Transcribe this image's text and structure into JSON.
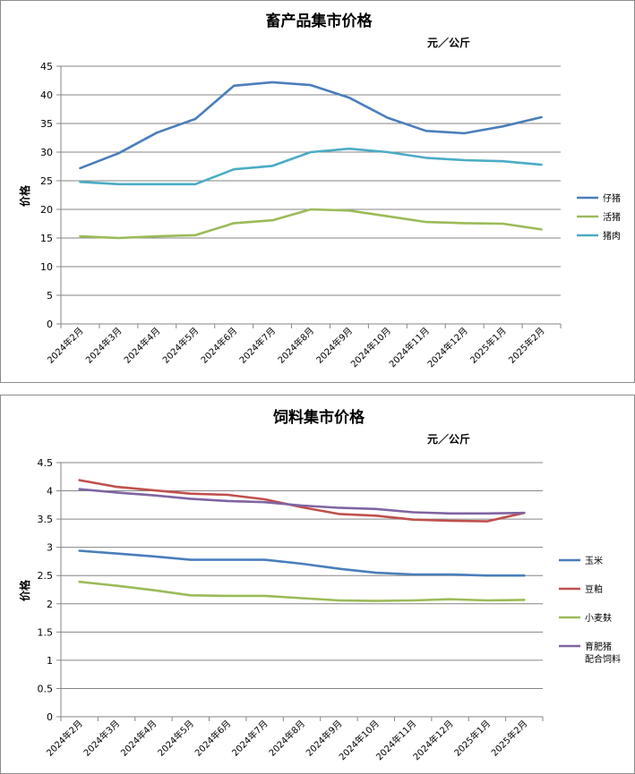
{
  "chart_data": [
    {
      "type": "line",
      "title": "畜产品集市价格",
      "unit": "元／公斤",
      "ylabel": "价格",
      "ylim": [
        0,
        45
      ],
      "yticks": [
        0,
        5,
        10,
        15,
        20,
        25,
        30,
        35,
        40,
        45
      ],
      "grid": true,
      "legend_position": "right",
      "categories": [
        "2024年2月",
        "2024年3月",
        "2024年4月",
        "2024年5月",
        "2024年6月",
        "2024年7月",
        "2024年8月",
        "2024年9月",
        "2024年10月",
        "2024年11月",
        "2024年12月",
        "2025年1月",
        "2025年2月"
      ],
      "series": [
        {
          "name": "仔猪",
          "color": "#4a7ebb",
          "values": [
            27.2,
            29.8,
            33.4,
            35.8,
            41.6,
            42.2,
            41.7,
            39.5,
            36.0,
            33.7,
            33.3,
            34.5,
            36.1
          ]
        },
        {
          "name": "活猪",
          "color": "#9bbb59",
          "values": [
            15.3,
            15.0,
            15.3,
            15.5,
            17.6,
            18.1,
            20.0,
            19.8,
            18.8,
            17.8,
            17.6,
            17.5,
            16.5
          ]
        },
        {
          "name": "猪肉",
          "color": "#4bacc6",
          "values": [
            24.8,
            24.4,
            24.4,
            24.4,
            27.0,
            27.6,
            30.0,
            30.6,
            30.0,
            29.0,
            28.6,
            28.4,
            27.8
          ]
        }
      ]
    },
    {
      "type": "line",
      "title": "饲料集市价格",
      "unit": "元／公斤",
      "ylabel": "价格",
      "ylim": [
        0,
        4.5
      ],
      "yticks": [
        "0",
        "0.5",
        "1",
        "1.5",
        "2",
        "2.5",
        "3",
        "3.5",
        "4",
        "4.5"
      ],
      "grid": true,
      "legend_position": "right",
      "categories": [
        "2024年2月",
        "2024年3月",
        "2024年4月",
        "2024年5月",
        "2024年6月",
        "2024年7月",
        "2024年8月",
        "2024年9月",
        "2024年10月",
        "2024年11月",
        "2024年12月",
        "2025年1月",
        "2025年2月"
      ],
      "series": [
        {
          "name": "玉米",
          "color": "#4a7ebb",
          "values": [
            2.94,
            2.89,
            2.84,
            2.78,
            2.78,
            2.78,
            2.71,
            2.62,
            2.55,
            2.52,
            2.52,
            2.5,
            2.5
          ]
        },
        {
          "name": "豆粕",
          "color": "#c0504d",
          "values": [
            4.19,
            4.07,
            4.01,
            3.95,
            3.93,
            3.85,
            3.71,
            3.59,
            3.56,
            3.49,
            3.47,
            3.46,
            3.61
          ]
        },
        {
          "name": "小麦麸",
          "color": "#9bbb59",
          "values": [
            2.39,
            2.32,
            2.24,
            2.15,
            2.14,
            2.14,
            2.1,
            2.06,
            2.05,
            2.06,
            2.08,
            2.06,
            2.07
          ]
        },
        {
          "name": "育肥猪配合饲料",
          "name_lines": [
            "育肥猪",
            "配合饲料"
          ],
          "color": "#8064a2",
          "values": [
            4.03,
            3.97,
            3.92,
            3.86,
            3.82,
            3.8,
            3.74,
            3.7,
            3.68,
            3.62,
            3.6,
            3.6,
            3.61
          ]
        }
      ]
    }
  ]
}
